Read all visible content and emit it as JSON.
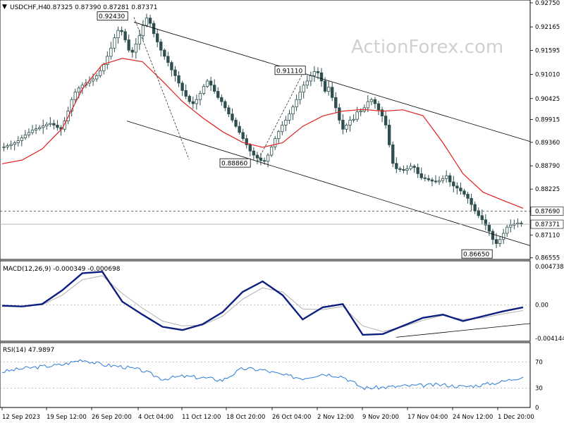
{
  "header": {
    "symbol": "USDCHF,H4",
    "ohlc": "0.87325 0.87390 0.87281 0.87371"
  },
  "watermark": "ActionForex.com",
  "chart_data": [
    {
      "type": "candlestick",
      "ylim": [
        0.8655,
        0.9275
      ],
      "yticks": [
        "0.92750",
        "0.92165",
        "0.91595",
        "0.91010",
        "0.90425",
        "0.89915",
        "0.89360",
        "0.88790",
        "0.88225",
        "0.87690",
        "0.87110",
        "0.86555"
      ],
      "xticks": [
        "12 Sep 2023",
        "19 Sep 12:00",
        "26 Sep 20:00",
        "4 Oct 04:00",
        "11 Oct 12:00",
        "18 Oct 20:00",
        "26 Oct 04:00",
        "2 Nov 12:00",
        "9 Nov 20:00",
        "17 Nov 04:00",
        "24 Nov 12:00",
        "1 Dec 20:00"
      ],
      "close_path": [
        [
          0.8925,
          0.8928,
          0.8931,
          0.8935,
          0.894,
          0.8947,
          0.8954
        ],
        [
          0.896,
          0.8966,
          0.8969,
          0.8972,
          0.8976,
          0.898,
          0.8982,
          0.8978,
          0.8972,
          0.8968
        ],
        [
          0.8988,
          0.9012,
          0.904,
          0.9058,
          0.9068,
          0.9075,
          0.908,
          0.9085,
          0.909,
          0.9098
        ],
        [
          0.911,
          0.9125,
          0.9145,
          0.9165,
          0.919,
          0.9208,
          0.9205,
          0.9185,
          0.916,
          0.9155
        ],
        [
          0.9175,
          0.9195,
          0.922,
          0.9238,
          0.9225,
          0.92,
          0.918,
          0.916,
          0.9145
        ],
        [
          0.913,
          0.9112,
          0.9098,
          0.908,
          0.9062,
          0.9048,
          0.9035,
          0.903,
          0.904,
          0.9055
        ],
        [
          0.9072,
          0.9085,
          0.9075,
          0.906,
          0.9045,
          0.9035,
          0.902,
          0.9005,
          0.899,
          0.8975
        ],
        [
          0.896,
          0.8945,
          0.893,
          0.8915,
          0.8905,
          0.8898,
          0.8892,
          0.889,
          0.8905,
          0.8925
        ],
        [
          0.8945,
          0.8962,
          0.8978,
          0.899,
          0.9005,
          0.9022,
          0.904,
          0.9058,
          0.9075,
          0.9085
        ],
        [
          0.9098,
          0.9108,
          0.9105,
          0.9085,
          0.906,
          0.907,
          0.9045,
          0.902,
          0.899,
          0.8968
        ],
        [
          0.8978,
          0.899,
          0.8992,
          0.901,
          0.9012,
          0.902,
          0.9035,
          0.904,
          0.903,
          0.9015
        ],
        [
          0.9,
          0.8978,
          0.893,
          0.8885,
          0.8872,
          0.887,
          0.8868,
          0.8872,
          0.8878,
          0.8875
        ],
        [
          0.886,
          0.885,
          0.8848,
          0.8845,
          0.8842,
          0.884,
          0.8843,
          0.8848,
          0.8855,
          0.884
        ],
        [
          0.883,
          0.8825,
          0.8818,
          0.881,
          0.88,
          0.8785,
          0.877,
          0.8758,
          0.8748,
          0.8735
        ],
        [
          0.872,
          0.87,
          0.869,
          0.87,
          0.8715,
          0.873,
          0.8735,
          0.8738,
          0.874,
          0.8737
        ]
      ],
      "ma_path": [
        0.8884,
        0.8893,
        0.892,
        0.897,
        0.9065,
        0.9125,
        0.914,
        0.9132,
        0.9085,
        0.9035,
        0.8996,
        0.8962,
        0.8936,
        0.8924,
        0.8935,
        0.8975,
        0.9,
        0.9012,
        0.9016,
        0.9012,
        0.9015,
        0.9001,
        0.8935,
        0.886,
        0.8815,
        0.8795,
        0.8776
      ],
      "channel": {
        "upper": [
          [
            0.9228,
            0.8938
          ]
        ],
        "lower": [
          [
            0.8988,
            0.8685
          ]
        ]
      },
      "dashed_paths": [
        [
          [
            0.924,
            0.8895
          ]
        ],
        [
          [
            0.8889,
            0.9112
          ]
        ]
      ],
      "horizontal_levels": [
        "0.87690",
        "0.87371"
      ],
      "price_labels": [
        "0.92430",
        "0.91110",
        "0.88860",
        "0.86650"
      ],
      "current_price_box": "0.87371",
      "level_box": "0.87690",
      "colors": {
        "candle": "#2f4f4f",
        "ma": "#e02020",
        "channel": "#000000",
        "level": "#555555"
      }
    },
    {
      "type": "line",
      "title": "MACD(12,26,9) -0.000349 -0.000698",
      "ylim": [
        -0.00414,
        0.00474
      ],
      "yticks": [
        "0.004738",
        "0.00",
        "-0.004144"
      ],
      "macd": [
        -0.0001,
        -0.0002,
        0.0001,
        0.0018,
        0.0039,
        0.0041,
        0.0004,
        -0.0012,
        -0.0027,
        -0.0031,
        -0.0024,
        -0.0009,
        0.0016,
        0.0029,
        0.0012,
        -0.0018,
        -0.0003,
        0.0001,
        -0.0037,
        -0.0036,
        -0.0026,
        -0.0016,
        -0.0012,
        -0.002,
        -0.0014,
        -0.0008,
        -0.0003
      ],
      "signal": [
        -0.0002,
        -0.0002,
        0.0,
        0.0012,
        0.0031,
        0.0036,
        0.0014,
        -0.0004,
        -0.002,
        -0.0026,
        -0.0025,
        -0.0014,
        0.0007,
        0.0021,
        0.0016,
        -0.0005,
        -0.0006,
        -0.0002,
        -0.0026,
        -0.0033,
        -0.0027,
        -0.0019,
        -0.0013,
        -0.0018,
        -0.0016,
        -0.0011,
        -0.0007
      ],
      "trendline": [
        [
          -0.004,
          -0.0023
        ]
      ],
      "colors": {
        "macd": "#0c1f80",
        "signal": "#b0b0b0"
      }
    },
    {
      "type": "line",
      "title": "RSI(14) 47.9897",
      "ylim": [
        0,
        100
      ],
      "yticks": [
        "70",
        "30",
        "0"
      ],
      "rsi": [
        55,
        60,
        63,
        66,
        74,
        66,
        63,
        57,
        44,
        48,
        46,
        42,
        60,
        58,
        50,
        45,
        52,
        48,
        30,
        31,
        33,
        34,
        35,
        32,
        35,
        40,
        48
      ],
      "color": "#2a7bd6"
    }
  ]
}
